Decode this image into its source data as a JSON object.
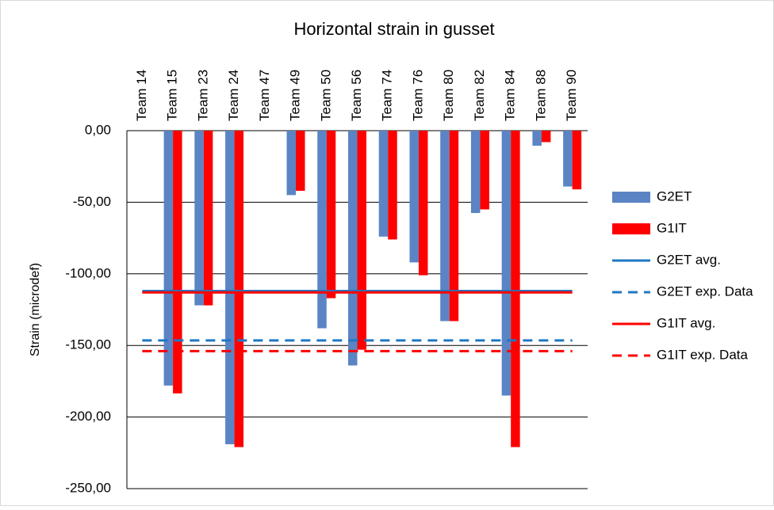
{
  "chart_data": {
    "type": "bar",
    "title": "Horizontal strain in gusset",
    "y_label": "Strain (microdef)",
    "categories": [
      "Team 14",
      "Team 15",
      "Team 23",
      "Team 24",
      "Team 47",
      "Team 49",
      "Team 50",
      "Team 56",
      "Team 74",
      "Team 76",
      "Team 80",
      "Team 82",
      "Team 84",
      "Team 88",
      "Team 90"
    ],
    "series": [
      {
        "name": "G2ET",
        "color": "#5b84c4",
        "values": [
          null,
          -178,
          -122,
          -219,
          null,
          -45,
          -138,
          -164,
          -74,
          -92,
          -133,
          -57.5,
          -185,
          -10.5,
          -39
        ]
      },
      {
        "name": "G1IT",
        "color": "#ff0000",
        "values": [
          null,
          -183.5,
          -122,
          -221,
          null,
          -42,
          -117,
          -153,
          -76,
          -101,
          -133,
          -55,
          -221,
          -8,
          -41
        ]
      }
    ],
    "lines": [
      {
        "name": "G2ET avg.",
        "color": "#1f77c4",
        "dashed": false,
        "value": -112
      },
      {
        "name": "G2ET exp. Data",
        "color": "#1f77c4",
        "dashed": true,
        "value": -146.5
      },
      {
        "name": "G1IT avg.",
        "color": "#ff0000",
        "dashed": false,
        "value": -113
      },
      {
        "name": "G1IT exp. Data",
        "color": "#ff0000",
        "dashed": true,
        "value": -154
      }
    ],
    "ylim": [
      -250,
      0
    ],
    "yticks": [
      {
        "value": 0,
        "label": "0,00"
      },
      {
        "value": -50,
        "label": "-50,00"
      },
      {
        "value": -100,
        "label": "-100,00"
      },
      {
        "value": -150,
        "label": "-150,00"
      },
      {
        "value": -200,
        "label": "-200,00"
      },
      {
        "value": -250,
        "label": "-250,00"
      }
    ],
    "grid": true,
    "legend": "right"
  }
}
